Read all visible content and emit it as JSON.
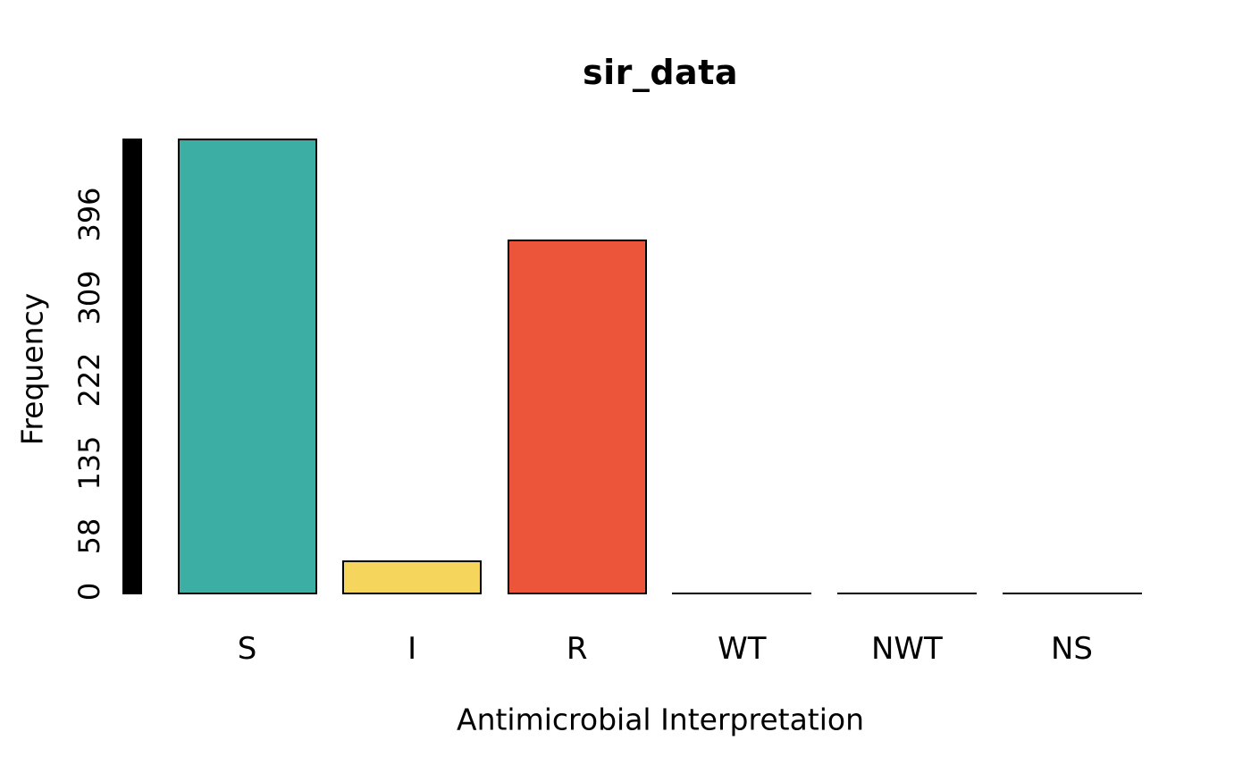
{
  "chart_data": {
    "type": "bar",
    "title": "sir_data",
    "xlabel": "Antimicrobial Interpretation",
    "ylabel": "Frequency",
    "categories": [
      "S",
      "I",
      "R",
      "WT",
      "NWT",
      "NS"
    ],
    "values": [
      476,
      33,
      370,
      0,
      0,
      0
    ],
    "bar_colors": [
      "#3CAEA3",
      "#F6D55C",
      "#ED553B",
      null,
      null,
      null
    ],
    "bar_border_color": "#000000",
    "ytick_values": [
      0,
      58,
      135,
      222,
      309,
      396
    ],
    "ytick_labels": [
      "0",
      "58",
      "135",
      "222",
      "309",
      "396"
    ],
    "ylim": [
      0,
      476
    ],
    "grid": "off",
    "legend": "none",
    "background_color": "#FFFFFF",
    "text_color": "#000000",
    "y_axis_style": "solid black band of dense tick marks from 0 to max value"
  }
}
